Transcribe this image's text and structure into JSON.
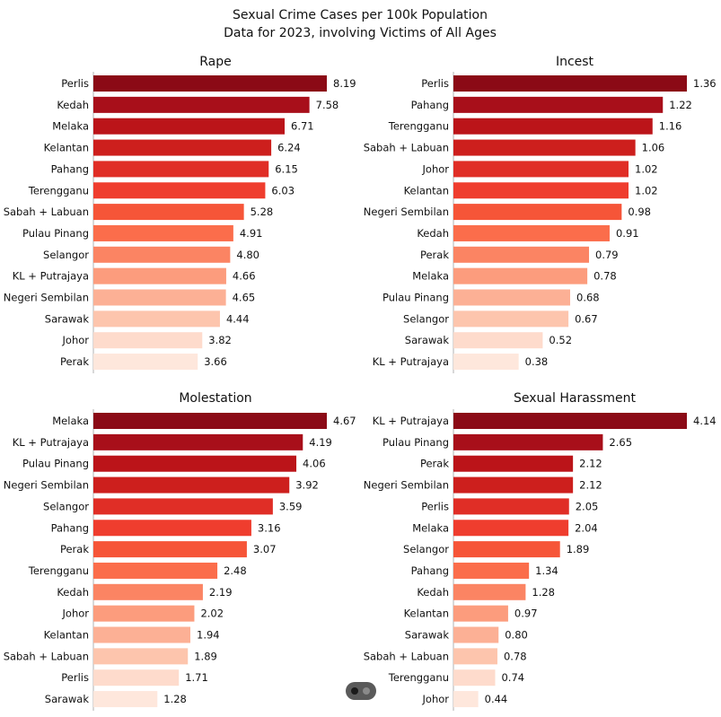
{
  "title": "Sexual Crime Cases per 100k Population",
  "subtitle": "Data for 2023, involving Victims of All Ages",
  "chart_data": [
    {
      "type": "bar",
      "orientation": "horizontal",
      "title": "Rape",
      "categories": [
        "Perlis",
        "Kedah",
        "Melaka",
        "Kelantan",
        "Pahang",
        "Terengganu",
        "Sabah + Labuan",
        "Pulau Pinang",
        "Selangor",
        "KL + Putrajaya",
        "Negeri Sembilan",
        "Sarawak",
        "Johor",
        "Perak"
      ],
      "values": [
        8.19,
        7.58,
        6.71,
        6.24,
        6.15,
        6.03,
        5.28,
        4.91,
        4.8,
        4.66,
        4.65,
        4.44,
        3.82,
        3.66
      ],
      "labels": [
        "8.19",
        "7.58",
        "6.71",
        "6.24",
        "6.15",
        "6.03",
        "5.28",
        "4.91",
        "4.80",
        "4.66",
        "4.65",
        "4.44",
        "3.82",
        "3.66"
      ],
      "xlim": [
        0,
        8.19
      ],
      "grid": false
    },
    {
      "type": "bar",
      "orientation": "horizontal",
      "title": "Incest",
      "categories": [
        "Perlis",
        "Pahang",
        "Terengganu",
        "Sabah + Labuan",
        "Johor",
        "Kelantan",
        "Negeri Sembilan",
        "Kedah",
        "Perak",
        "Melaka",
        "Pulau Pinang",
        "Selangor",
        "Sarawak",
        "KL + Putrajaya"
      ],
      "values": [
        1.36,
        1.22,
        1.16,
        1.06,
        1.02,
        1.02,
        0.98,
        0.91,
        0.79,
        0.78,
        0.68,
        0.67,
        0.52,
        0.38
      ],
      "labels": [
        "1.36",
        "1.22",
        "1.16",
        "1.06",
        "1.02",
        "1.02",
        "0.98",
        "0.91",
        "0.79",
        "0.78",
        "0.68",
        "0.67",
        "0.52",
        "0.38"
      ],
      "xlim": [
        0,
        1.36
      ],
      "grid": false
    },
    {
      "type": "bar",
      "orientation": "horizontal",
      "title": "Molestation",
      "categories": [
        "Melaka",
        "KL + Putrajaya",
        "Pulau Pinang",
        "Negeri Sembilan",
        "Selangor",
        "Pahang",
        "Perak",
        "Terengganu",
        "Kedah",
        "Johor",
        "Kelantan",
        "Sabah + Labuan",
        "Perlis",
        "Sarawak"
      ],
      "values": [
        4.67,
        4.19,
        4.06,
        3.92,
        3.59,
        3.16,
        3.07,
        2.48,
        2.19,
        2.02,
        1.94,
        1.89,
        1.71,
        1.28
      ],
      "labels": [
        "4.67",
        "4.19",
        "4.06",
        "3.92",
        "3.59",
        "3.16",
        "3.07",
        "2.48",
        "2.19",
        "2.02",
        "1.94",
        "1.89",
        "1.71",
        "1.28"
      ],
      "xlim": [
        0,
        4.67
      ],
      "grid": false
    },
    {
      "type": "bar",
      "orientation": "horizontal",
      "title": "Sexual Harassment",
      "categories": [
        "KL + Putrajaya",
        "Pulau Pinang",
        "Perak",
        "Negeri Sembilan",
        "Perlis",
        "Melaka",
        "Selangor",
        "Pahang",
        "Kedah",
        "Kelantan",
        "Sarawak",
        "Sabah + Labuan",
        "Terengganu",
        "Johor"
      ],
      "values": [
        4.14,
        2.65,
        2.12,
        2.12,
        2.05,
        2.04,
        1.89,
        1.34,
        1.28,
        0.97,
        0.8,
        0.78,
        0.74,
        0.44
      ],
      "labels": [
        "4.14",
        "2.65",
        "2.12",
        "2.12",
        "2.05",
        "2.04",
        "1.89",
        "1.34",
        "1.28",
        "0.97",
        "0.80",
        "0.78",
        "0.74",
        "0.44"
      ],
      "xlim": [
        0,
        4.14
      ],
      "grid": false
    }
  ],
  "colors": [
    "#8b0a16",
    "#a80f1a",
    "#bb1419",
    "#cd1f1d",
    "#e02e26",
    "#ef3d2e",
    "#f65538",
    "#fb6d4b",
    "#fb8463",
    "#fc9c7d",
    "#fcb095",
    "#fdc5ad",
    "#fedbcc",
    "#fee7dc"
  ]
}
